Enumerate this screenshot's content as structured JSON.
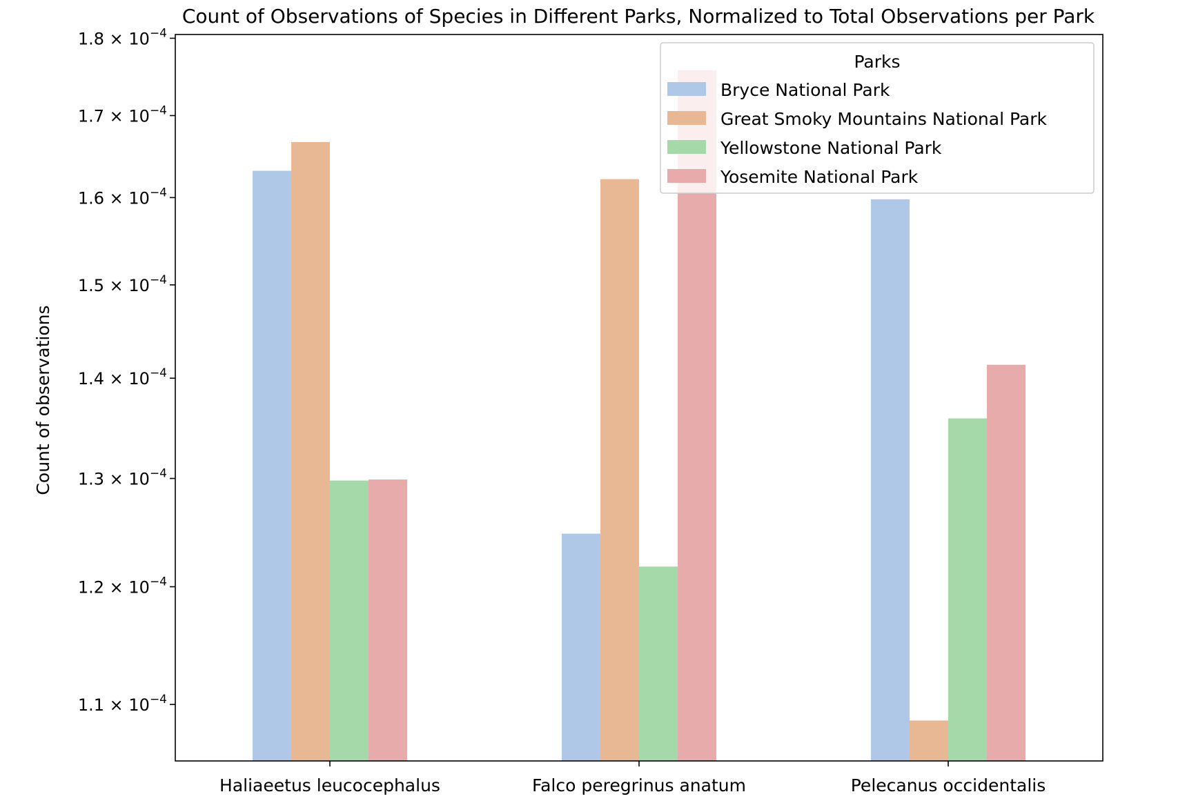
{
  "colors": {
    "series": [
      "#b0c8e8",
      "#e8b895",
      "#a6d9a9",
      "#e8abab"
    ],
    "axis": "#000000",
    "background": "#ffffff"
  },
  "chart_data": {
    "type": "bar",
    "title": "Count of Observations of Species in Different Parks, Normalized to Total Observations per Park",
    "xlabel": "",
    "ylabel": "Count of observations",
    "yscale": "log",
    "ylim": [
      0.0001055,
      0.0001805
    ],
    "yticks": [
      {
        "value": 0.00011,
        "mantissa": "1.1"
      },
      {
        "value": 0.00012,
        "mantissa": "1.2"
      },
      {
        "value": 0.00013,
        "mantissa": "1.3"
      },
      {
        "value": 0.00014,
        "mantissa": "1.4"
      },
      {
        "value": 0.00015,
        "mantissa": "1.5"
      },
      {
        "value": 0.00016,
        "mantissa": "1.6"
      },
      {
        "value": 0.00017,
        "mantissa": "1.7"
      },
      {
        "value": 0.00018,
        "mantissa": "1.8"
      }
    ],
    "ytick_base": "× 10",
    "ytick_exponent": "−4",
    "categories": [
      "Haliaeetus leucocephalus",
      "Falco peregrinus anatum",
      "Pelecanus occidentalis"
    ],
    "legend": {
      "title": "Parks",
      "position": "upper-right"
    },
    "grid": false,
    "series": [
      {
        "name": "Bryce National Park",
        "values": [
          0.0001632,
          0.0001248,
          0.0001598
        ]
      },
      {
        "name": "Great Smoky Mountains National Park",
        "values": [
          0.0001667,
          0.0001622,
          0.0001087
        ]
      },
      {
        "name": "Yellowstone National Park",
        "values": [
          0.0001298,
          0.0001218,
          0.0001359
        ]
      },
      {
        "name": "Yosemite National Park",
        "values": [
          0.0001299,
          0.0001758,
          0.0001414
        ]
      }
    ]
  }
}
